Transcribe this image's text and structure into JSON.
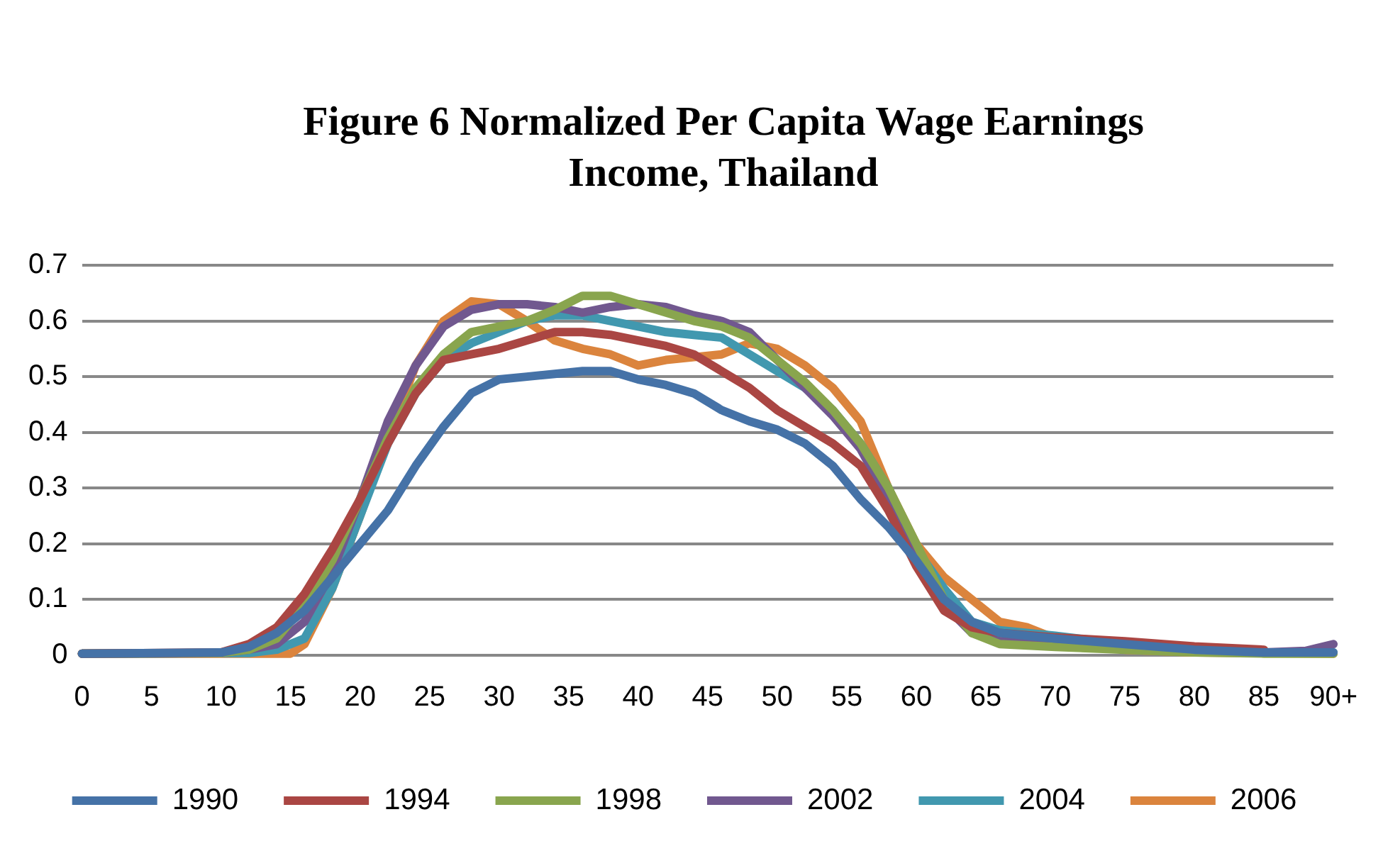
{
  "chart_data": {
    "type": "line",
    "title": "Figure 6 Normalized Per Capita Wage Earnings Income, Thailand",
    "xlim": [
      0,
      90
    ],
    "xticks": [
      0,
      5,
      10,
      15,
      20,
      25,
      30,
      35,
      40,
      45,
      50,
      55,
      60,
      65,
      70,
      75,
      80,
      85,
      {
        "value": 90,
        "label": "90+"
      }
    ],
    "ylim": [
      0,
      0.7
    ],
    "yticks": [
      0,
      0.1,
      0.2,
      0.3,
      0.4,
      0.5,
      0.6,
      0.7
    ],
    "grid": "y",
    "legend": "bottom",
    "marker": "none",
    "line_style": "solid",
    "series": [
      {
        "name": "1990",
        "color": "#4572a7",
        "x": [
          0,
          10,
          12,
          14,
          16,
          18,
          20,
          22,
          24,
          26,
          28,
          30,
          32,
          34,
          36,
          38,
          40,
          42,
          44,
          46,
          48,
          50,
          52,
          54,
          56,
          58,
          60,
          62,
          64,
          66,
          70,
          75,
          80,
          85,
          90
        ],
        "values": [
          0.003,
          0.005,
          0.015,
          0.04,
          0.08,
          0.14,
          0.2,
          0.26,
          0.34,
          0.41,
          0.47,
          0.495,
          0.5,
          0.505,
          0.51,
          0.51,
          0.495,
          0.485,
          0.47,
          0.44,
          0.42,
          0.405,
          0.38,
          0.34,
          0.28,
          0.23,
          0.17,
          0.1,
          0.06,
          0.04,
          0.03,
          0.02,
          0.01,
          0.005,
          0.005
        ]
      },
      {
        "name": "1994",
        "color": "#aa4643",
        "x": [
          0,
          10,
          12,
          14,
          16,
          18,
          20,
          22,
          24,
          26,
          28,
          30,
          32,
          34,
          36,
          38,
          40,
          42,
          44,
          46,
          48,
          50,
          52,
          54,
          56,
          58,
          60,
          62,
          64,
          66,
          70,
          75,
          80,
          85
        ],
        "values": [
          0.003,
          0.005,
          0.02,
          0.05,
          0.11,
          0.19,
          0.28,
          0.38,
          0.47,
          0.53,
          0.54,
          0.55,
          0.565,
          0.58,
          0.58,
          0.575,
          0.565,
          0.555,
          0.54,
          0.51,
          0.48,
          0.44,
          0.41,
          0.38,
          0.34,
          0.26,
          0.16,
          0.08,
          0.05,
          0.04,
          0.032,
          0.025,
          0.016,
          0.01
        ]
      },
      {
        "name": "1998",
        "color": "#89a54e",
        "x": [
          0,
          10,
          12,
          14,
          16,
          18,
          20,
          22,
          24,
          26,
          28,
          30,
          32,
          34,
          36,
          38,
          40,
          42,
          44,
          46,
          48,
          50,
          52,
          54,
          56,
          58,
          60,
          62,
          64,
          66,
          70,
          75,
          80,
          85,
          90
        ],
        "values": [
          0.003,
          0.004,
          0.01,
          0.03,
          0.09,
          0.17,
          0.28,
          0.39,
          0.48,
          0.54,
          0.58,
          0.59,
          0.6,
          0.62,
          0.645,
          0.645,
          0.63,
          0.615,
          0.6,
          0.59,
          0.57,
          0.53,
          0.49,
          0.44,
          0.38,
          0.3,
          0.2,
          0.1,
          0.04,
          0.02,
          0.015,
          0.01,
          0.005,
          0.003,
          0.003
        ]
      },
      {
        "name": "2002",
        "color": "#71588f",
        "x": [
          0,
          10,
          12,
          14,
          16,
          18,
          20,
          22,
          24,
          26,
          28,
          30,
          32,
          34,
          36,
          38,
          40,
          42,
          44,
          46,
          48,
          50,
          52,
          54,
          56,
          58,
          60,
          62,
          64,
          66,
          70,
          75,
          80,
          85,
          88,
          90
        ],
        "values": [
          0.003,
          0.004,
          0.01,
          0.02,
          0.06,
          0.15,
          0.28,
          0.42,
          0.52,
          0.59,
          0.62,
          0.63,
          0.63,
          0.625,
          0.615,
          0.625,
          0.63,
          0.625,
          0.61,
          0.6,
          0.58,
          0.53,
          0.48,
          0.43,
          0.37,
          0.28,
          0.18,
          0.09,
          0.04,
          0.025,
          0.02,
          0.015,
          0.01,
          0.005,
          0.008,
          0.02
        ]
      },
      {
        "name": "2004",
        "color": "#4198af",
        "x": [
          0,
          12,
          14,
          16,
          18,
          20,
          22,
          24,
          26,
          28,
          30,
          32,
          34,
          36,
          38,
          40,
          42,
          44,
          46,
          48,
          50,
          52,
          54,
          56,
          58,
          60,
          62,
          64,
          66,
          70,
          75,
          80,
          85,
          90
        ],
        "values": [
          0.003,
          0.004,
          0.01,
          0.03,
          0.12,
          0.25,
          0.38,
          0.47,
          0.53,
          0.56,
          0.58,
          0.6,
          0.61,
          0.61,
          0.6,
          0.59,
          0.58,
          0.575,
          0.57,
          0.54,
          0.51,
          0.48,
          0.44,
          0.38,
          0.3,
          0.19,
          0.12,
          0.06,
          0.045,
          0.035,
          0.02,
          0.01,
          0.005,
          0.005
        ]
      },
      {
        "name": "2006",
        "color": "#db843d",
        "x": [
          0,
          15,
          16,
          18,
          20,
          22,
          24,
          26,
          28,
          30,
          32,
          34,
          36,
          38,
          40,
          42,
          44,
          46,
          48,
          50,
          52,
          54,
          56,
          58,
          60,
          62,
          64,
          66,
          68,
          70,
          75,
          80,
          90
        ],
        "values": [
          0.003,
          0.003,
          0.02,
          0.12,
          0.25,
          0.39,
          0.52,
          0.6,
          0.635,
          0.63,
          0.6,
          0.565,
          0.55,
          0.54,
          0.52,
          0.53,
          0.535,
          0.54,
          0.56,
          0.55,
          0.52,
          0.48,
          0.42,
          0.3,
          0.2,
          0.14,
          0.1,
          0.06,
          0.05,
          0.03,
          0.01,
          0.005,
          0.003
        ]
      }
    ]
  }
}
